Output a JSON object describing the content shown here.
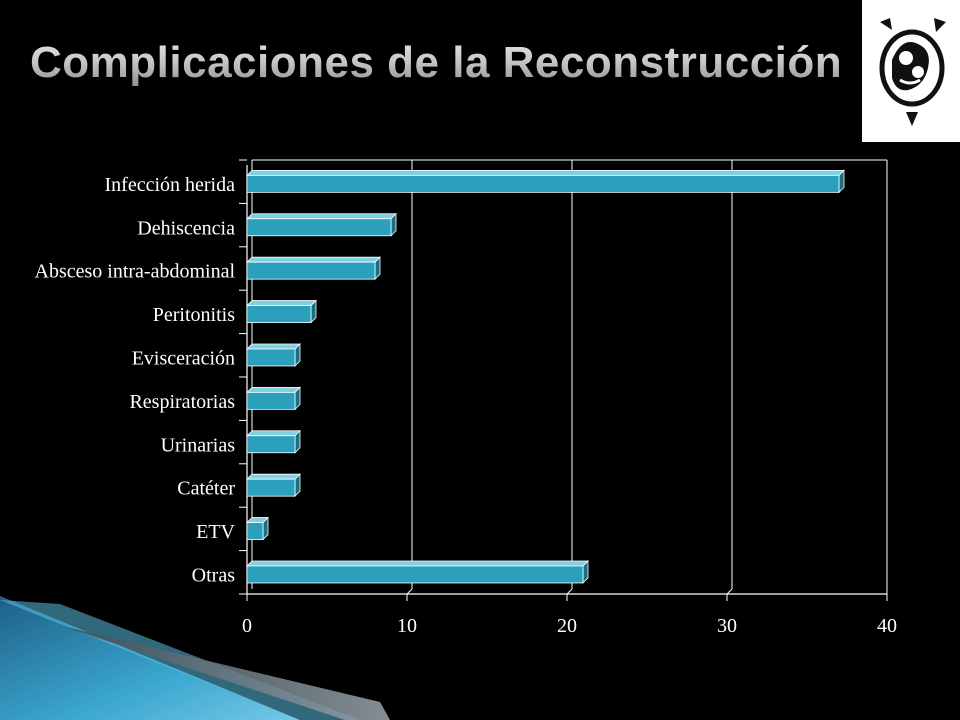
{
  "slide": {
    "title": "Complicaciones de la Reconstrucción",
    "logo_icon": "institution-logo-icon",
    "accent_color": "#2aa0bc",
    "background_color": "#000000"
  },
  "chart_data": {
    "type": "bar",
    "orientation": "horizontal",
    "categories": [
      "Infección herida",
      "Dehiscencia",
      "Absceso intra-abdominal",
      "Peritonitis",
      "Evisceración",
      "Respiratorias",
      "Urinarias",
      "Catéter",
      "ETV",
      "Otras"
    ],
    "values": [
      37,
      9,
      8,
      4,
      3,
      3,
      3,
      3,
      1,
      21
    ],
    "xlim": [
      0,
      40
    ],
    "xticks": [
      "0",
      "10",
      "20",
      "30",
      "40"
    ],
    "xlabel": "",
    "ylabel": "",
    "grid": true,
    "bar_color": "#2aa0bc",
    "style": "3d"
  }
}
